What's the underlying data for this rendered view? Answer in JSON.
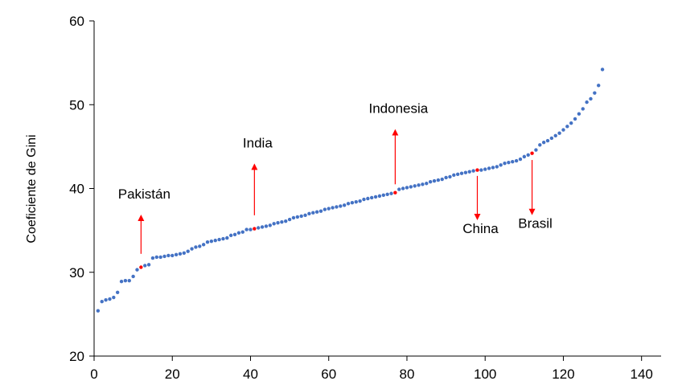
{
  "chart_data": {
    "type": "scatter",
    "ylabel": "Coeficiente de Gini",
    "xlabel": "",
    "xlim": [
      0,
      145
    ],
    "ylim": [
      20,
      60
    ],
    "xticks": [
      0,
      20,
      40,
      60,
      80,
      100,
      120,
      140
    ],
    "yticks": [
      20,
      30,
      40,
      50,
      60
    ],
    "grid": false,
    "colors": {
      "point": "#4472C4",
      "highlight": "#FF0000",
      "arrow": "#FF0000"
    },
    "points": [
      [
        1,
        25.4
      ],
      [
        2,
        26.5
      ],
      [
        3,
        26.7
      ],
      [
        4,
        26.8
      ],
      [
        5,
        27.0
      ],
      [
        6,
        27.6
      ],
      [
        7,
        28.9
      ],
      [
        8,
        29.0
      ],
      [
        9,
        29.0
      ],
      [
        10,
        29.5
      ],
      [
        11,
        30.3
      ],
      [
        12,
        30.6
      ],
      [
        13,
        30.8
      ],
      [
        14,
        30.9
      ],
      [
        15,
        31.7
      ],
      [
        16,
        31.8
      ],
      [
        17,
        31.8
      ],
      [
        18,
        31.9
      ],
      [
        19,
        32.0
      ],
      [
        20,
        32.0
      ],
      [
        21,
        32.1
      ],
      [
        22,
        32.2
      ],
      [
        23,
        32.3
      ],
      [
        24,
        32.5
      ],
      [
        25,
        32.8
      ],
      [
        26,
        33.0
      ],
      [
        27,
        33.1
      ],
      [
        28,
        33.3
      ],
      [
        29,
        33.6
      ],
      [
        30,
        33.7
      ],
      [
        31,
        33.8
      ],
      [
        32,
        33.9
      ],
      [
        33,
        34.0
      ],
      [
        34,
        34.1
      ],
      [
        35,
        34.4
      ],
      [
        36,
        34.5
      ],
      [
        37,
        34.7
      ],
      [
        38,
        34.8
      ],
      [
        39,
        35.1
      ],
      [
        40,
        35.1
      ],
      [
        41,
        35.2
      ],
      [
        42,
        35.3
      ],
      [
        43,
        35.4
      ],
      [
        44,
        35.5
      ],
      [
        45,
        35.6
      ],
      [
        46,
        35.8
      ],
      [
        47,
        35.9
      ],
      [
        48,
        36.0
      ],
      [
        49,
        36.1
      ],
      [
        50,
        36.3
      ],
      [
        51,
        36.5
      ],
      [
        52,
        36.6
      ],
      [
        53,
        36.7
      ],
      [
        54,
        36.8
      ],
      [
        55,
        37.0
      ],
      [
        56,
        37.1
      ],
      [
        57,
        37.2
      ],
      [
        58,
        37.3
      ],
      [
        59,
        37.5
      ],
      [
        60,
        37.6
      ],
      [
        61,
        37.7
      ],
      [
        62,
        37.8
      ],
      [
        63,
        37.9
      ],
      [
        64,
        38.0
      ],
      [
        65,
        38.2
      ],
      [
        66,
        38.3
      ],
      [
        67,
        38.4
      ],
      [
        68,
        38.5
      ],
      [
        69,
        38.7
      ],
      [
        70,
        38.8
      ],
      [
        71,
        38.9
      ],
      [
        72,
        39.0
      ],
      [
        73,
        39.1
      ],
      [
        74,
        39.2
      ],
      [
        75,
        39.3
      ],
      [
        76,
        39.4
      ],
      [
        77,
        39.5
      ],
      [
        78,
        39.9
      ],
      [
        79,
        40.0
      ],
      [
        80,
        40.1
      ],
      [
        81,
        40.2
      ],
      [
        82,
        40.3
      ],
      [
        83,
        40.4
      ],
      [
        84,
        40.5
      ],
      [
        85,
        40.6
      ],
      [
        86,
        40.8
      ],
      [
        87,
        40.9
      ],
      [
        88,
        41.0
      ],
      [
        89,
        41.1
      ],
      [
        90,
        41.3
      ],
      [
        91,
        41.4
      ],
      [
        92,
        41.6
      ],
      [
        93,
        41.7
      ],
      [
        94,
        41.8
      ],
      [
        95,
        41.9
      ],
      [
        96,
        42.0
      ],
      [
        97,
        42.1
      ],
      [
        98,
        42.2
      ],
      [
        99,
        42.2
      ],
      [
        100,
        42.3
      ],
      [
        101,
        42.4
      ],
      [
        102,
        42.5
      ],
      [
        103,
        42.6
      ],
      [
        104,
        42.8
      ],
      [
        105,
        43.0
      ],
      [
        106,
        43.1
      ],
      [
        107,
        43.2
      ],
      [
        108,
        43.3
      ],
      [
        109,
        43.5
      ],
      [
        110,
        43.8
      ],
      [
        111,
        44.0
      ],
      [
        112,
        44.2
      ],
      [
        113,
        44.6
      ],
      [
        114,
        45.2
      ],
      [
        115,
        45.5
      ],
      [
        116,
        45.7
      ],
      [
        117,
        46.0
      ],
      [
        118,
        46.3
      ],
      [
        119,
        46.6
      ],
      [
        120,
        47.0
      ],
      [
        121,
        47.4
      ],
      [
        122,
        47.8
      ],
      [
        123,
        48.3
      ],
      [
        124,
        48.9
      ],
      [
        125,
        49.5
      ],
      [
        126,
        50.3
      ],
      [
        127,
        50.7
      ],
      [
        128,
        51.4
      ],
      [
        129,
        52.3
      ],
      [
        130,
        54.2
      ]
    ],
    "highlights": [
      {
        "label": "Pakistán",
        "x": 12,
        "y": 30.6,
        "arrow_from": 32.2,
        "arrow_to": 36.5,
        "direction": "up"
      },
      {
        "label": "India",
        "x": 41,
        "y": 35.2,
        "arrow_from": 36.8,
        "arrow_to": 42.6,
        "direction": "up"
      },
      {
        "label": "Indonesia",
        "x": 77,
        "y": 39.5,
        "arrow_from": 40.5,
        "arrow_to": 46.7,
        "direction": "up"
      },
      {
        "label": "China",
        "x": 98,
        "y": 42.2,
        "arrow_from": 41.5,
        "arrow_to": 36.6,
        "direction": "down"
      },
      {
        "label": "Brasil",
        "x": 112,
        "y": 44.2,
        "arrow_from": 43.4,
        "arrow_to": 37.2,
        "direction": "down"
      }
    ]
  }
}
